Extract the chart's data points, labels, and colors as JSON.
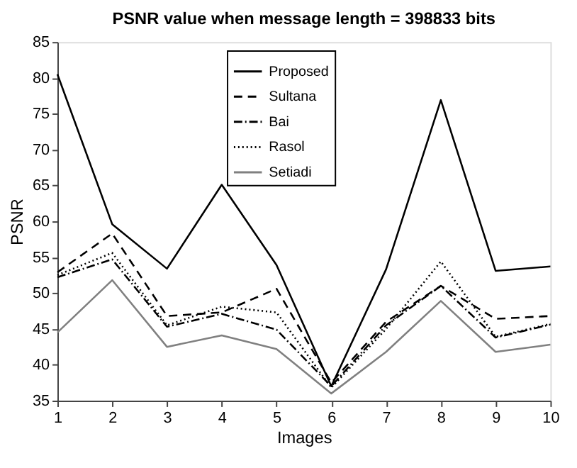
{
  "chart_data": {
    "type": "line",
    "title": "PSNR value when message length = 398833 bits",
    "xlabel": "Images",
    "ylabel": "PSNR",
    "x": [
      1,
      2,
      3,
      4,
      5,
      6,
      7,
      8,
      9,
      10
    ],
    "series": [
      {
        "name": "Proposed",
        "color": "#000000",
        "line_style": "solid",
        "values": [
          80.5,
          59.6,
          53.4,
          65.1,
          53.9,
          37.0,
          53.3,
          76.9,
          53.1,
          53.7
        ]
      },
      {
        "name": "Sultana",
        "color": "#000000",
        "line_style": "dashed",
        "values": [
          52.9,
          58.3,
          46.8,
          47.3,
          50.6,
          37.5,
          46.0,
          51.0,
          46.4,
          46.8
        ]
      },
      {
        "name": "Bai",
        "color": "#000000",
        "line_style": "dashdot",
        "values": [
          52.2,
          54.7,
          45.3,
          47.1,
          44.9,
          37.0,
          45.5,
          51.0,
          43.8,
          45.6
        ]
      },
      {
        "name": "Rasol",
        "color": "#000000",
        "line_style": "dotted",
        "values": [
          52.5,
          55.6,
          45.5,
          48.1,
          47.3,
          36.8,
          45.0,
          54.4,
          43.9,
          45.7
        ]
      },
      {
        "name": "Setiadi",
        "color": "#808080",
        "line_style": "solid",
        "values": [
          44.5,
          51.8,
          42.5,
          44.1,
          42.2,
          36.0,
          41.8,
          48.9,
          41.8,
          42.8
        ]
      }
    ],
    "xlim": [
      1,
      10
    ],
    "ylim": [
      35,
      85
    ],
    "xticks": [
      1,
      2,
      3,
      4,
      5,
      6,
      7,
      8,
      9,
      10
    ],
    "yticks": [
      35,
      40,
      45,
      50,
      55,
      60,
      65,
      70,
      75,
      80,
      85
    ],
    "grid": false,
    "legend": "top",
    "marker": "none"
  }
}
